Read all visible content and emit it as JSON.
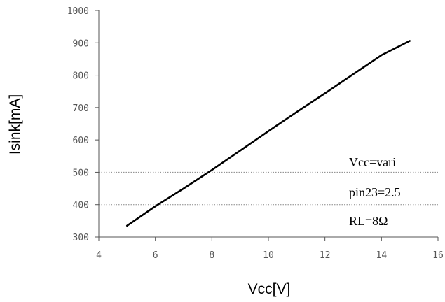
{
  "chart_data": {
    "type": "line",
    "title": "",
    "xlabel": "Vcc[V]",
    "ylabel": "Isink[mA]",
    "xlim": [
      4,
      16
    ],
    "ylim": [
      300,
      1000
    ],
    "xticks": [
      4,
      6,
      8,
      10,
      12,
      14,
      16
    ],
    "yticks": [
      300,
      400,
      500,
      600,
      700,
      800,
      900,
      1000
    ],
    "grid": {
      "horizontal_dotted_at": [
        400,
        500
      ]
    },
    "legend": "none",
    "series": [
      {
        "x": [
          5,
          6,
          7,
          8,
          9,
          10,
          11,
          12,
          13,
          14,
          15
        ],
        "y": [
          335,
          395,
          450,
          507,
          567,
          627,
          686,
          744,
          803,
          862,
          906
        ],
        "color": "#000000"
      }
    ],
    "annotations": [
      "Vcc=vari",
      "pin23=2.5",
      "RL=8Ω"
    ]
  }
}
